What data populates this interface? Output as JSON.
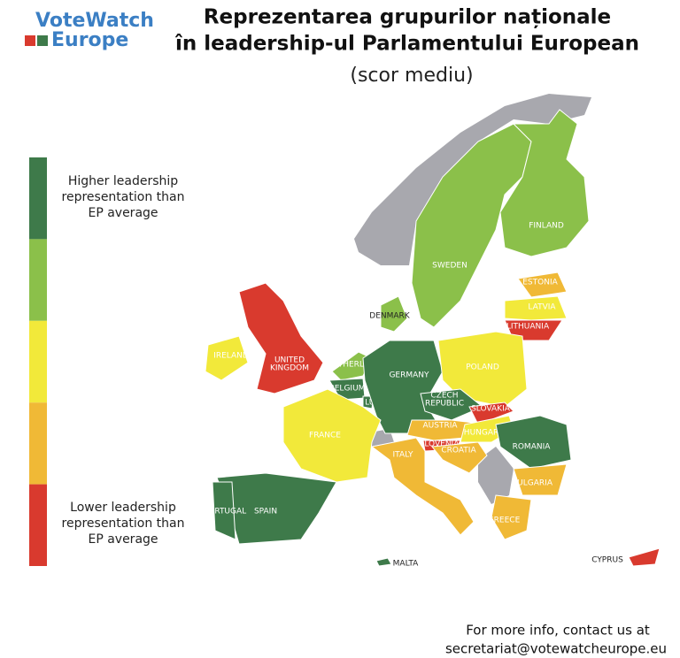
{
  "logo": {
    "line1": "VoteWatch",
    "line2": "Europe"
  },
  "title": {
    "line1": "Reprezentarea grupurilor naționale",
    "line2": "în leadership-ul Parlamentului European",
    "subtitle": "(scor mediu)"
  },
  "legend": {
    "colors": [
      "#3e7a4a",
      "#8bc04a",
      "#f2e93a",
      "#f0b936",
      "#d93a2e"
    ],
    "high_label": [
      "Higher leadership",
      "representation than",
      "EP average"
    ],
    "low_label": [
      "Lower leadership",
      "representation than",
      "EP average"
    ]
  },
  "countries": [
    {
      "label": "SWEDEN",
      "color": "#8bc04a"
    },
    {
      "label": "FINLAND",
      "color": "#8bc04a"
    },
    {
      "label": "ESTONIA",
      "color": "#f0b936"
    },
    {
      "label": "LATVIA",
      "color": "#f2e93a"
    },
    {
      "label": "LITHUANIA",
      "color": "#d93a2e"
    },
    {
      "label": "DENMARK",
      "color": "#8bc04a"
    },
    {
      "label": "IRELAND",
      "color": "#f2e93a"
    },
    {
      "label": "UNITED",
      "color": "#d93a2e"
    },
    {
      "label": "NETHERLANDS",
      "color": "#8bc04a"
    },
    {
      "label": "BELGIUM",
      "color": "#3e7a4a"
    },
    {
      "label": "LUXEMBOURG",
      "color": "#3e7a4a"
    },
    {
      "label": "GERMANY",
      "color": "#3e7a4a"
    },
    {
      "label": "POLAND",
      "color": "#f2e93a"
    },
    {
      "label": "CZECH",
      "color": "#3e7a4a"
    },
    {
      "label": "SLOVAKIA",
      "color": "#d93a2e"
    },
    {
      "label": "AUSTRIA",
      "color": "#f0b936"
    },
    {
      "label": "HUNGARY",
      "color": "#f2e93a"
    },
    {
      "label": "SLOVENIA",
      "color": "#d93a2e"
    },
    {
      "label": "CROATIA",
      "color": "#f0b936"
    },
    {
      "label": "ROMANIA",
      "color": "#3e7a4a"
    },
    {
      "label": "BULGARIA",
      "color": "#f0b936"
    },
    {
      "label": "GREECE",
      "color": "#f0b936"
    },
    {
      "label": "ITALY",
      "color": "#f0b936"
    },
    {
      "label": "FRANCE",
      "color": "#f2e93a"
    },
    {
      "label": "SPAIN",
      "color": "#3e7a4a"
    },
    {
      "label": "PORTUGAL",
      "color": "#3e7a4a"
    },
    {
      "label": "MALTA",
      "color": "#3e7a4a"
    },
    {
      "label": "CYPRUS",
      "color": "#d93a2e"
    }
  ],
  "country_second_lines": {
    "UNITED": "KINGDOM",
    "CZECH": "REPUBLIC"
  },
  "footer": {
    "line1": "For more info, contact us at",
    "line2": "secretariat@votewatcheurope.eu"
  }
}
